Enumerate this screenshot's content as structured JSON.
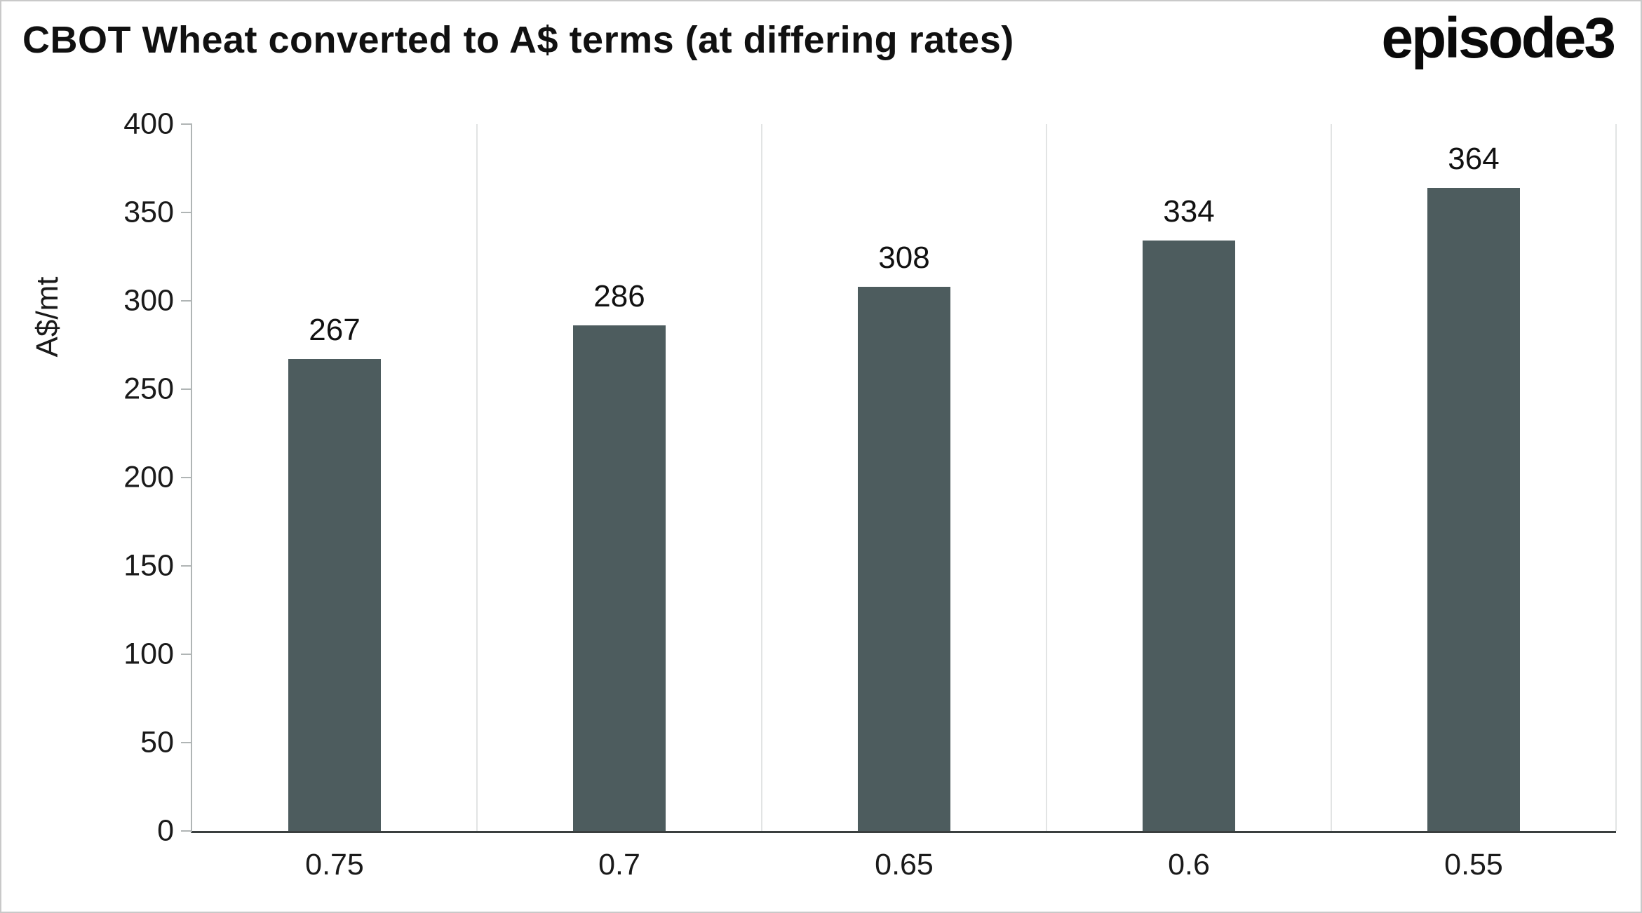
{
  "header": {
    "title": "CBOT Wheat converted to A$ terms (at differing rates)",
    "logo_text": "episode3"
  },
  "chart_data": {
    "type": "bar",
    "title": "CBOT Wheat converted to A$ terms (at differing rates)",
    "categories": [
      "0.75",
      "0.7",
      "0.65",
      "0.6",
      "0.55"
    ],
    "values": [
      267,
      286,
      308,
      334,
      364
    ],
    "xlabel": "",
    "ylabel": "A$/mt",
    "ylim": [
      0,
      400
    ],
    "yticks": [
      0,
      50,
      100,
      150,
      200,
      250,
      300,
      350,
      400
    ],
    "bar_color": "#4d5c5e",
    "grid": "vertical-light",
    "legend": "none"
  }
}
